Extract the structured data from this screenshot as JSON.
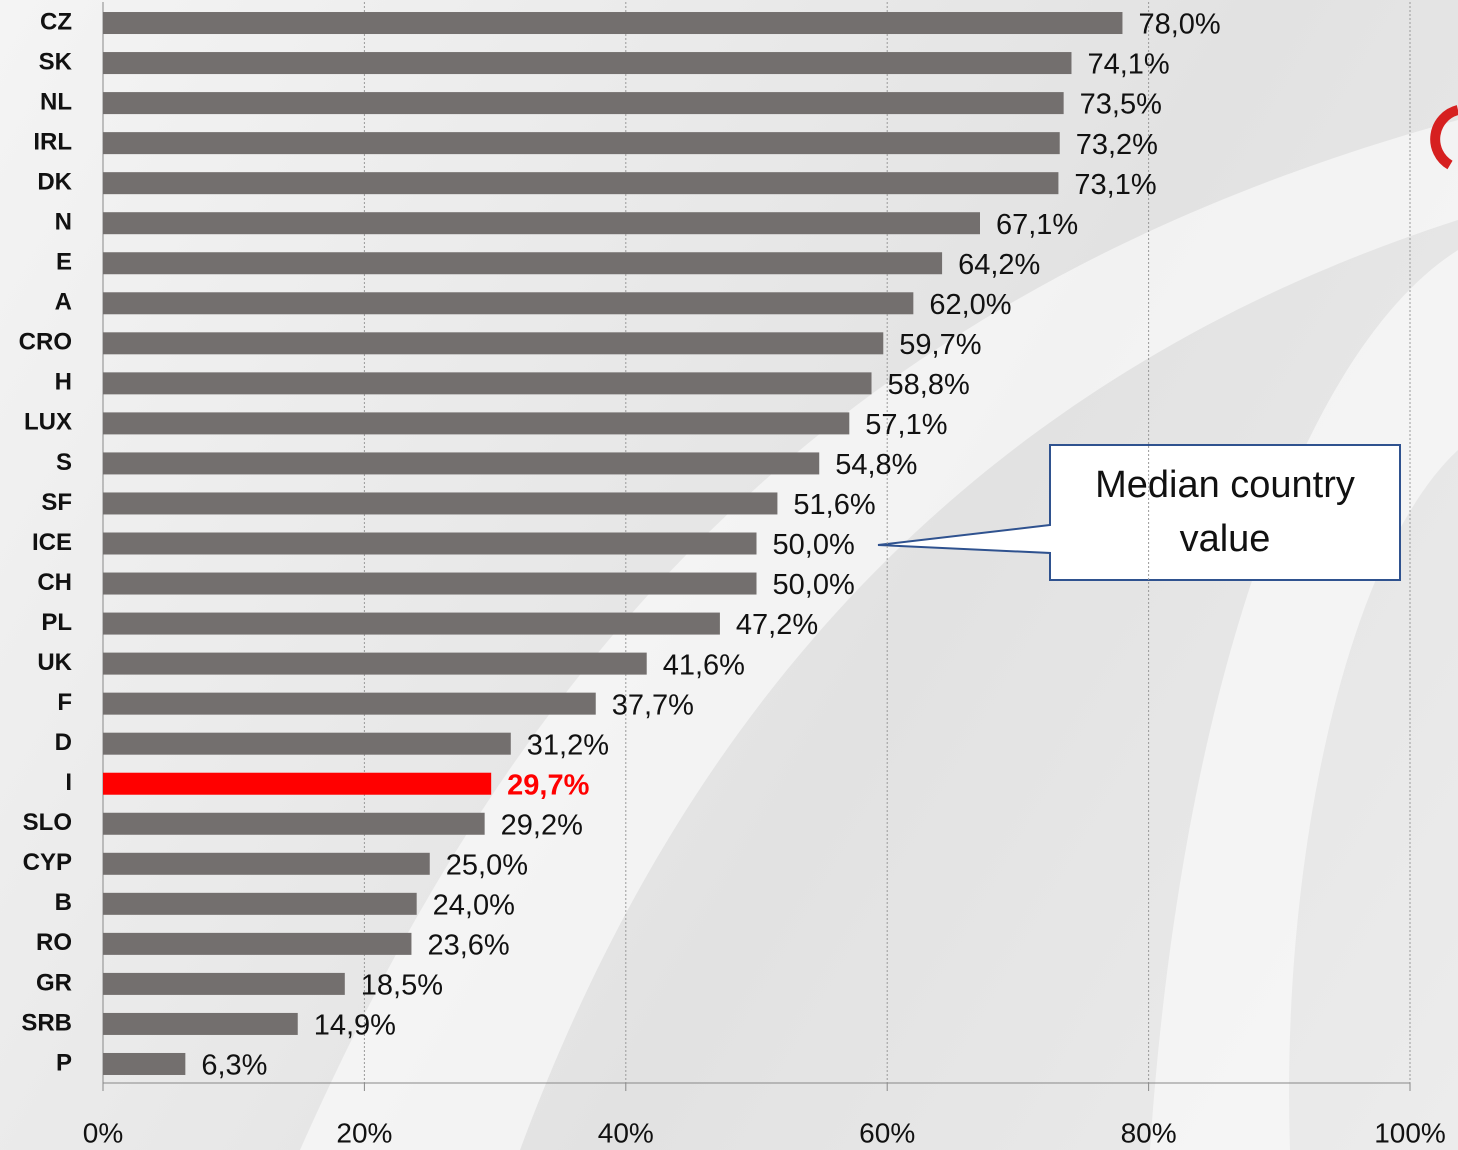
{
  "chart_data": {
    "type": "bar",
    "orientation": "horizontal",
    "categories": [
      "CZ",
      "SK",
      "NL",
      "IRL",
      "DK",
      "N",
      "E",
      "A",
      "CRO",
      "H",
      "LUX",
      "S",
      "SF",
      "ICE",
      "CH",
      "PL",
      "UK",
      "F",
      "D",
      "I",
      "SLO",
      "CYP",
      "B",
      "RO",
      "GR",
      "SRB",
      "P"
    ],
    "values": [
      78.0,
      74.1,
      73.5,
      73.2,
      73.1,
      67.1,
      64.2,
      62.0,
      59.7,
      58.8,
      57.1,
      54.8,
      51.6,
      50.0,
      50.0,
      47.2,
      41.6,
      37.7,
      31.2,
      29.7,
      29.2,
      25.0,
      24.0,
      23.6,
      18.5,
      14.9,
      6.3
    ],
    "value_labels": [
      "78,0%",
      "74,1%",
      "73,5%",
      "73,2%",
      "73,1%",
      "67,1%",
      "64,2%",
      "62,0%",
      "59,7%",
      "58,8%",
      "57,1%",
      "54,8%",
      "51,6%",
      "50,0%",
      "50,0%",
      "47,2%",
      "41,6%",
      "37,7%",
      "31,2%",
      "29,7%",
      "29,2%",
      "25,0%",
      "24,0%",
      "23,6%",
      "18,5%",
      "14,9%",
      "6,3%"
    ],
    "colors": [
      "#736f6e",
      "#736f6e",
      "#736f6e",
      "#736f6e",
      "#736f6e",
      "#736f6e",
      "#736f6e",
      "#736f6e",
      "#736f6e",
      "#736f6e",
      "#736f6e",
      "#736f6e",
      "#736f6e",
      "#736f6e",
      "#736f6e",
      "#736f6e",
      "#736f6e",
      "#736f6e",
      "#736f6e",
      "#ff0000",
      "#736f6e",
      "#736f6e",
      "#736f6e",
      "#736f6e",
      "#736f6e",
      "#736f6e",
      "#736f6e"
    ],
    "xlim": [
      0,
      100
    ],
    "xticks": [
      {
        "value": 0,
        "label": "0%"
      },
      {
        "value": 20,
        "label": "20%"
      },
      {
        "value": 40,
        "label": "40%"
      },
      {
        "value": 60,
        "label": "60%"
      },
      {
        "value": 80,
        "label": "80%"
      },
      {
        "value": 100,
        "label": "100%"
      }
    ],
    "grid": true,
    "annotation": {
      "text": "Median country value",
      "category_index": 13
    }
  }
}
